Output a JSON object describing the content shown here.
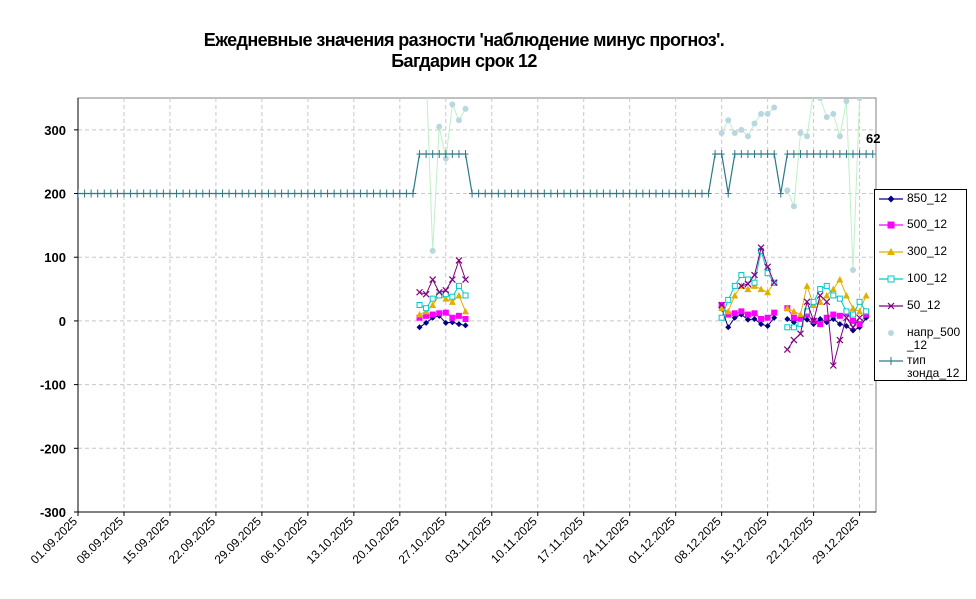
{
  "chart_data": {
    "type": "line",
    "title": "Ежедневные значения разности 'наблюдение минус прогноз'.",
    "subtitle": "Багдарин    срок 12",
    "ylim": [
      -300,
      350
    ],
    "yticks": [
      -300,
      -200,
      -100,
      0,
      100,
      200,
      300
    ],
    "x_start": "01.09.2025",
    "x_end": "31.12.2025",
    "xtick_labels": [
      "01.09.2025",
      "08.09.2025",
      "15.09.2025",
      "22.09.2025",
      "29.09.2025",
      "06.10.2025",
      "13.10.2025",
      "20.10.2025",
      "27.10.2025",
      "03.11.2025",
      "10.11.2025",
      "17.11.2025",
      "24.11.2025",
      "01.12.2025",
      "08.12.2025",
      "15.12.2025",
      "22.12.2025",
      "29.12.2025"
    ],
    "grid": true,
    "legend_position": "right",
    "annotation": "62",
    "series": [
      {
        "name": "850_12",
        "color": "#000080",
        "marker": "diamond",
        "points": [
          [
            "23.10",
            -10
          ],
          [
            "24.10",
            -3
          ],
          [
            "25.10",
            5
          ],
          [
            "26.10",
            8
          ],
          [
            "27.10",
            -3
          ],
          [
            "28.10",
            -2
          ],
          [
            "29.10",
            -5
          ],
          [
            "30.10",
            -7
          ],
          [
            "08.12",
            20
          ],
          [
            "09.12",
            -10
          ],
          [
            "10.12",
            5
          ],
          [
            "11.12",
            10
          ],
          [
            "12.12",
            2
          ],
          [
            "13.12",
            3
          ],
          [
            "14.12",
            -5
          ],
          [
            "15.12",
            -8
          ],
          [
            "16.12",
            5
          ],
          [
            "18.12",
            3
          ],
          [
            "19.12",
            -2
          ],
          [
            "20.12",
            5
          ],
          [
            "21.12",
            2
          ],
          [
            "22.12",
            -5
          ],
          [
            "23.12",
            3
          ],
          [
            "24.12",
            -2
          ],
          [
            "25.12",
            3
          ],
          [
            "26.12",
            -5
          ],
          [
            "27.12",
            -8
          ],
          [
            "28.12",
            -15
          ],
          [
            "29.12",
            -10
          ],
          [
            "30.12",
            5
          ]
        ]
      },
      {
        "name": "500_12",
        "color": "#ff00ff",
        "marker": "square",
        "points": [
          [
            "23.10",
            5
          ],
          [
            "24.10",
            8
          ],
          [
            "25.10",
            10
          ],
          [
            "26.10",
            12
          ],
          [
            "27.10",
            13
          ],
          [
            "28.10",
            5
          ],
          [
            "29.10",
            8
          ],
          [
            "30.10",
            3
          ],
          [
            "08.12",
            25
          ],
          [
            "09.12",
            10
          ],
          [
            "10.12",
            12
          ],
          [
            "11.12",
            15
          ],
          [
            "12.12",
            10
          ],
          [
            "13.12",
            12
          ],
          [
            "14.12",
            3
          ],
          [
            "15.12",
            5
          ],
          [
            "16.12",
            13
          ],
          [
            "18.12",
            20
          ],
          [
            "19.12",
            5
          ],
          [
            "20.12",
            0
          ],
          [
            "21.12",
            10
          ],
          [
            "22.12",
            0
          ],
          [
            "23.12",
            -5
          ],
          [
            "24.12",
            5
          ],
          [
            "25.12",
            10
          ],
          [
            "26.12",
            8
          ],
          [
            "27.12",
            12
          ],
          [
            "28.12",
            0
          ],
          [
            "29.12",
            -5
          ],
          [
            "30.12",
            10
          ]
        ]
      },
      {
        "name": "300_12",
        "color": "#e0b000",
        "marker": "triangle",
        "points": [
          [
            "23.10",
            10
          ],
          [
            "24.10",
            15
          ],
          [
            "25.10",
            25
          ],
          [
            "26.10",
            40
          ],
          [
            "27.10",
            35
          ],
          [
            "28.10",
            30
          ],
          [
            "29.10",
            40
          ],
          [
            "30.10",
            15
          ],
          [
            "08.12",
            20
          ],
          [
            "09.12",
            15
          ],
          [
            "10.12",
            40
          ],
          [
            "11.12",
            55
          ],
          [
            "12.12",
            50
          ],
          [
            "13.12",
            55
          ],
          [
            "14.12",
            50
          ],
          [
            "15.12",
            45
          ],
          [
            "16.12",
            60
          ],
          [
            "18.12",
            20
          ],
          [
            "19.12",
            15
          ],
          [
            "20.12",
            10
          ],
          [
            "21.12",
            55
          ],
          [
            "22.12",
            25
          ],
          [
            "23.12",
            30
          ],
          [
            "24.12",
            40
          ],
          [
            "25.12",
            50
          ],
          [
            "26.12",
            65
          ],
          [
            "27.12",
            40
          ],
          [
            "28.12",
            20
          ],
          [
            "29.12",
            15
          ],
          [
            "30.12",
            40
          ]
        ]
      },
      {
        "name": "100_12",
        "color": "#00c8c8",
        "marker": "open-square",
        "points": [
          [
            "23.10",
            25
          ],
          [
            "24.10",
            20
          ],
          [
            "25.10",
            35
          ],
          [
            "26.10",
            40
          ],
          [
            "27.10",
            42
          ],
          [
            "28.10",
            38
          ],
          [
            "29.10",
            55
          ],
          [
            "30.10",
            40
          ],
          [
            "08.12",
            5
          ],
          [
            "09.12",
            33
          ],
          [
            "10.12",
            55
          ],
          [
            "11.12",
            72
          ],
          [
            "12.12",
            65
          ],
          [
            "13.12",
            60
          ],
          [
            "14.12",
            110
          ],
          [
            "15.12",
            75
          ],
          [
            "16.12",
            60
          ],
          [
            "18.12",
            -10
          ],
          [
            "19.12",
            -10
          ],
          [
            "20.12",
            -5
          ],
          [
            "21.12",
            15
          ],
          [
            "22.12",
            30
          ],
          [
            "23.12",
            50
          ],
          [
            "24.12",
            55
          ],
          [
            "25.12",
            40
          ],
          [
            "26.12",
            35
          ],
          [
            "27.12",
            15
          ],
          [
            "28.12",
            10
          ],
          [
            "29.12",
            30
          ],
          [
            "30.12",
            15
          ]
        ]
      },
      {
        "name": "50_12",
        "color": "#800080",
        "marker": "x",
        "points": [
          [
            "23.10",
            45
          ],
          [
            "24.10",
            42
          ],
          [
            "25.10",
            65
          ],
          [
            "26.10",
            45
          ],
          [
            "27.10",
            48
          ],
          [
            "28.10",
            65
          ],
          [
            "29.10",
            95
          ],
          [
            "30.10",
            65
          ],
          [
            "08.12",
            25
          ],
          [
            "11.12",
            55
          ],
          [
            "12.12",
            58
          ],
          [
            "13.12",
            72
          ],
          [
            "14.12",
            115
          ],
          [
            "15.12",
            85
          ],
          [
            "16.12",
            60
          ],
          [
            "18.12",
            -45
          ],
          [
            "19.12",
            -30
          ],
          [
            "20.12",
            -20
          ],
          [
            "21.12",
            30
          ],
          [
            "22.12",
            0
          ],
          [
            "23.12",
            40
          ],
          [
            "24.12",
            30
          ],
          [
            "25.12",
            -70
          ],
          [
            "26.12",
            -30
          ],
          [
            "27.12",
            5
          ],
          [
            "28.12",
            -10
          ],
          [
            "29.12",
            5
          ]
        ]
      },
      {
        "name": "напр_500_12",
        "color": "#b8d8e0",
        "marker": "dot",
        "line_color": "#bff0c8",
        "points": [
          [
            "23.10",
            400
          ],
          [
            "24.10",
            390
          ],
          [
            "25.10",
            110
          ],
          [
            "26.10",
            305
          ],
          [
            "27.10",
            255
          ],
          [
            "28.10",
            340
          ],
          [
            "29.10",
            315
          ],
          [
            "30.10",
            333
          ],
          [
            "08.12",
            295
          ],
          [
            "09.12",
            315
          ],
          [
            "10.12",
            295
          ],
          [
            "11.12",
            300
          ],
          [
            "12.12",
            290
          ],
          [
            "13.12",
            310
          ],
          [
            "14.12",
            325
          ],
          [
            "15.12",
            325
          ],
          [
            "16.12",
            335
          ],
          [
            "18.12",
            205
          ],
          [
            "19.12",
            180
          ],
          [
            "20.12",
            295
          ],
          [
            "21.12",
            290
          ],
          [
            "22.12",
            360
          ],
          [
            "23.12",
            350
          ],
          [
            "24.12",
            320
          ],
          [
            "25.12",
            325
          ],
          [
            "26.12",
            290
          ],
          [
            "27.12",
            345
          ],
          [
            "28.12",
            80
          ],
          [
            "29.12",
            350
          ],
          [
            "30.12",
            400
          ]
        ]
      },
      {
        "name": "тип зонда_12",
        "color": "#2a7a8a",
        "marker": "plus",
        "ranges": [
          [
            "01.09",
            "22.10",
            200
          ],
          [
            "23.10",
            "30.10",
            262
          ],
          [
            "31.10",
            "06.12",
            200
          ],
          [
            "07.12",
            "08.12",
            262
          ],
          [
            "09.12",
            null,
            200
          ],
          [
            "10.12",
            "16.12",
            262
          ],
          [
            "17.12",
            null,
            200
          ],
          [
            "18.12",
            "31.12",
            262
          ]
        ]
      }
    ]
  },
  "legend": {
    "items": [
      "850_12",
      "500_12",
      "300_12",
      "100_12",
      "50_12",
      "напр_500\n_12",
      "тип\nзонда_12"
    ]
  }
}
